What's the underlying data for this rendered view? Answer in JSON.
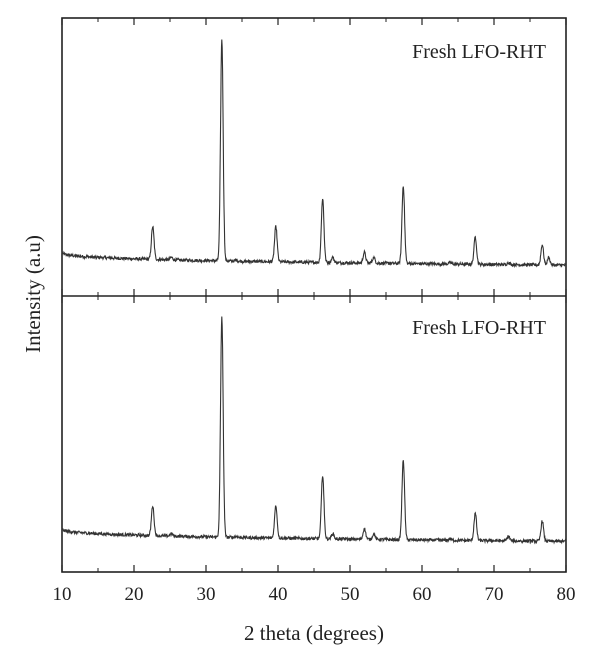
{
  "chart_data": {
    "type": "line",
    "xlabel": "2 theta (degrees)",
    "ylabel": "Intensity (a.u)",
    "xlim": [
      10,
      80
    ],
    "x_ticks": [
      10,
      20,
      30,
      40,
      50,
      60,
      70,
      80
    ],
    "x_minor_ticks": [
      15,
      25,
      35,
      45,
      55,
      65,
      75
    ],
    "y_ticks": "none",
    "grid": false,
    "line_color": "#333333",
    "panels": [
      {
        "label": "Fresh LFO-RHT",
        "ylim": [
          0,
          1.05
        ],
        "baseline_start": 0.17,
        "baseline_end": 0.12,
        "peaks": [
          {
            "x": 22.6,
            "y": 0.27
          },
          {
            "x": 25.2,
            "y": 0.15
          },
          {
            "x": 32.2,
            "y": 1.0
          },
          {
            "x": 34.2,
            "y": 0.14
          },
          {
            "x": 39.7,
            "y": 0.27
          },
          {
            "x": 46.2,
            "y": 0.38
          },
          {
            "x": 47.6,
            "y": 0.15
          },
          {
            "x": 52.0,
            "y": 0.17
          },
          {
            "x": 53.3,
            "y": 0.15
          },
          {
            "x": 57.4,
            "y": 0.43
          },
          {
            "x": 63.9,
            "y": 0.13
          },
          {
            "x": 67.4,
            "y": 0.23
          },
          {
            "x": 72.0,
            "y": 0.13
          },
          {
            "x": 76.7,
            "y": 0.2
          },
          {
            "x": 77.6,
            "y": 0.15
          }
        ]
      },
      {
        "label": "Fresh LFO-RHT",
        "ylim": [
          0,
          1.05
        ],
        "baseline_start": 0.17,
        "baseline_end": 0.12,
        "peaks": [
          {
            "x": 22.6,
            "y": 0.26
          },
          {
            "x": 25.2,
            "y": 0.15
          },
          {
            "x": 32.2,
            "y": 1.0
          },
          {
            "x": 34.2,
            "y": 0.14
          },
          {
            "x": 39.7,
            "y": 0.26
          },
          {
            "x": 46.2,
            "y": 0.38
          },
          {
            "x": 47.6,
            "y": 0.15
          },
          {
            "x": 52.0,
            "y": 0.17
          },
          {
            "x": 53.3,
            "y": 0.15
          },
          {
            "x": 57.4,
            "y": 0.44
          },
          {
            "x": 63.9,
            "y": 0.13
          },
          {
            "x": 67.4,
            "y": 0.23
          },
          {
            "x": 72.0,
            "y": 0.14
          },
          {
            "x": 76.7,
            "y": 0.2
          }
        ]
      }
    ]
  }
}
